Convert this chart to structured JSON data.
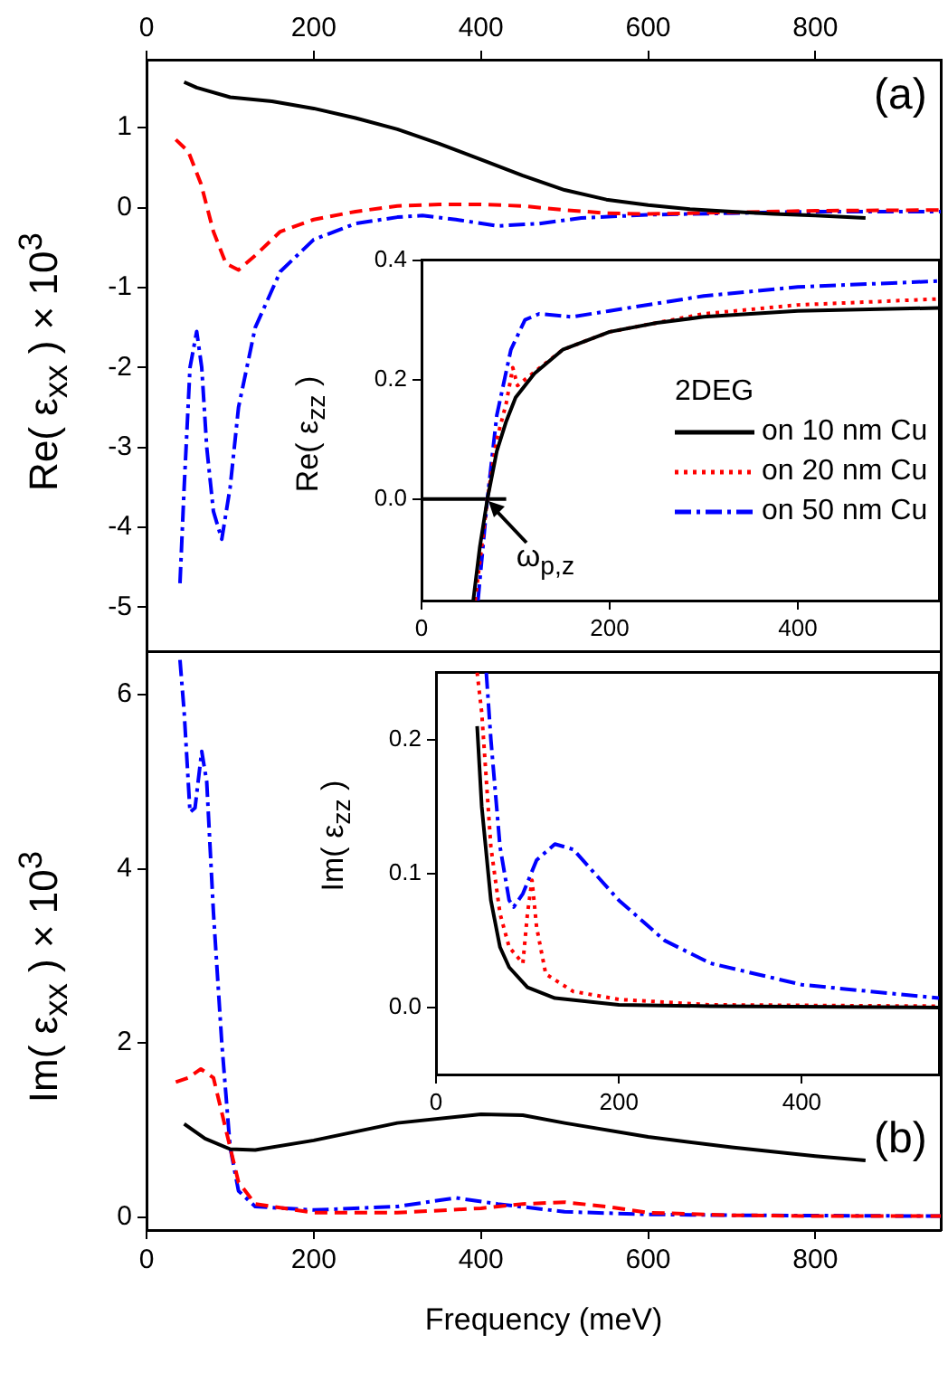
{
  "chart_data": [
    {
      "type": "line",
      "ylabel": "Re( ε$_{xx}$ ) × 10$^{3}$",
      "xlim": [
        0,
        950
      ],
      "xticks": [
        0,
        200,
        400,
        600,
        800
      ],
      "ylim": [
        -5.55,
        1.85
      ],
      "yticks": [
        -5,
        -4,
        -3,
        -2,
        -1,
        0,
        1
      ],
      "grid": false,
      "legend": false,
      "annotations": [
        "(a)"
      ],
      "series": [
        {
          "color": "#000000",
          "line_style": "solid",
          "x": [
            45,
            60,
            100,
            150,
            200,
            250,
            300,
            350,
            400,
            450,
            500,
            550,
            600,
            650,
            700,
            750,
            800,
            860
          ],
          "values": [
            1.57,
            1.5,
            1.38,
            1.33,
            1.24,
            1.12,
            0.98,
            0.8,
            0.6,
            0.4,
            0.22,
            0.1,
            0.03,
            -0.02,
            -0.05,
            -0.08,
            -0.1,
            -0.13
          ]
        },
        {
          "color": "#ff0000",
          "line_style": "dashed",
          "x": [
            35,
            50,
            65,
            80,
            95,
            110,
            130,
            160,
            200,
            250,
            300,
            350,
            400,
            450,
            500,
            550,
            600,
            700,
            800,
            950
          ],
          "values": [
            0.85,
            0.7,
            0.3,
            -0.3,
            -0.7,
            -0.78,
            -0.6,
            -0.3,
            -0.15,
            -0.05,
            0.02,
            0.04,
            0.04,
            0.02,
            -0.03,
            -0.07,
            -0.08,
            -0.06,
            -0.04,
            -0.03
          ]
        },
        {
          "color": "#0000ff",
          "line_style": "dashdot",
          "x": [
            40,
            45,
            52,
            60,
            66,
            72,
            80,
            90,
            100,
            110,
            130,
            160,
            200,
            250,
            300,
            330,
            370,
            420,
            470,
            520,
            600,
            700,
            800,
            950
          ],
          "values": [
            -4.7,
            -3.5,
            -2.0,
            -1.55,
            -2.0,
            -3.0,
            -3.8,
            -4.15,
            -3.5,
            -2.5,
            -1.5,
            -0.8,
            -0.4,
            -0.2,
            -0.12,
            -0.1,
            -0.15,
            -0.23,
            -0.2,
            -0.13,
            -0.09,
            -0.07,
            -0.05,
            -0.05
          ]
        }
      ]
    },
    {
      "type": "line",
      "ylabel": "Re( ε$_{zz}$ )",
      "xlim": [
        0,
        550
      ],
      "xticks": [
        0,
        200,
        400
      ],
      "ylim": [
        -0.17,
        0.4
      ],
      "yticks": [
        {
          "value": 0,
          "label": "0.0"
        },
        {
          "value": 0.2,
          "label": "0.2"
        },
        {
          "value": 0.4,
          "label": "0.4"
        }
      ],
      "grid": false,
      "legend": "right",
      "legend_title": "2DEG",
      "annotations": [
        {
          "text": "ω$_{p,z}$",
          "x": 70,
          "y": 0
        }
      ],
      "series": [
        {
          "name": "on 10 nm Cu",
          "color": "#000000",
          "line_style": "solid",
          "x": [
            55,
            62,
            70,
            80,
            90,
            100,
            120,
            150,
            200,
            250,
            300,
            400,
            550
          ],
          "values": [
            -0.17,
            -0.08,
            0,
            0.08,
            0.13,
            0.17,
            0.21,
            0.25,
            0.28,
            0.295,
            0.305,
            0.315,
            0.32
          ]
        },
        {
          "name": "on 20 nm Cu",
          "color": "#ff0000",
          "line_style": "dotted",
          "x": [
            57,
            70,
            80,
            90,
            97,
            102,
            110,
            150,
            200,
            300,
            400,
            550
          ],
          "values": [
            -0.17,
            0,
            0.1,
            0.16,
            0.22,
            0.19,
            0.2,
            0.25,
            0.28,
            0.31,
            0.325,
            0.335
          ]
        },
        {
          "name": "on 50 nm Cu",
          "color": "#0000ff",
          "line_style": "dashdot",
          "x": [
            60,
            70,
            80,
            95,
            110,
            125,
            160,
            200,
            300,
            400,
            550
          ],
          "values": [
            -0.17,
            0,
            0.14,
            0.25,
            0.3,
            0.31,
            0.305,
            0.315,
            0.34,
            0.355,
            0.365
          ]
        },
        {
          "color": "#000000",
          "line_style": "solid",
          "x": [
            0,
            90
          ],
          "values": [
            0,
            0
          ]
        }
      ]
    },
    {
      "type": "line",
      "ylabel": "Im( ε$_{xx}$ ) × 10$^{3}$",
      "xlabel": "Frequency (meV)",
      "xlim": [
        0,
        950
      ],
      "xticks": [
        0,
        200,
        400,
        600,
        800
      ],
      "ylim": [
        -0.15,
        6.5
      ],
      "yticks": [
        0,
        2,
        4,
        6
      ],
      "grid": false,
      "legend": false,
      "annotations": [
        "(b)"
      ],
      "series": [
        {
          "color": "#000000",
          "line_style": "solid",
          "x": [
            45,
            70,
            100,
            130,
            200,
            300,
            400,
            450,
            500,
            600,
            700,
            800,
            860
          ],
          "values": [
            1.07,
            0.9,
            0.78,
            0.77,
            0.88,
            1.08,
            1.18,
            1.17,
            1.08,
            0.92,
            0.8,
            0.7,
            0.65
          ]
        },
        {
          "color": "#ff0000",
          "line_style": "dashed",
          "x": [
            35,
            50,
            65,
            80,
            95,
            110,
            130,
            200,
            300,
            400,
            450,
            500,
            550,
            600,
            700,
            800,
            950
          ],
          "values": [
            1.55,
            1.6,
            1.7,
            1.6,
            1.0,
            0.4,
            0.15,
            0.05,
            0.05,
            0.1,
            0.15,
            0.17,
            0.12,
            0.05,
            0.02,
            0.01,
            0.01
          ]
        },
        {
          "color": "#0000ff",
          "line_style": "dashdot",
          "x": [
            40,
            45,
            52,
            58,
            66,
            72,
            80,
            90,
            100,
            110,
            130,
            200,
            300,
            370,
            420,
            500,
            600,
            700,
            950
          ],
          "values": [
            6.4,
            5.8,
            4.65,
            4.7,
            5.35,
            5.0,
            3.5,
            2.0,
            0.8,
            0.3,
            0.12,
            0.08,
            0.12,
            0.22,
            0.15,
            0.06,
            0.03,
            0.02,
            0.01
          ]
        }
      ]
    },
    {
      "type": "line",
      "ylabel": "Im( ε$_{zz}$ )",
      "xlim": [
        0,
        550
      ],
      "xticks": [
        0,
        200,
        400
      ],
      "ylim": [
        -0.05,
        0.25
      ],
      "yticks": [
        {
          "value": 0,
          "label": "0.0"
        },
        {
          "value": 0.1,
          "label": "0.1"
        },
        {
          "value": 0.2,
          "label": "0.2"
        }
      ],
      "grid": false,
      "legend": false,
      "series": [
        {
          "color": "#000000",
          "line_style": "solid",
          "x": [
            45,
            50,
            60,
            70,
            80,
            100,
            130,
            200,
            300,
            550
          ],
          "values": [
            0.21,
            0.15,
            0.08,
            0.045,
            0.03,
            0.015,
            0.007,
            0.002,
            0.001,
            0
          ]
        },
        {
          "color": "#ff0000",
          "line_style": "dotted",
          "x": [
            45,
            50,
            60,
            70,
            80,
            95,
            100,
            105,
            110,
            120,
            150,
            200,
            300,
            550
          ],
          "values": [
            0.25,
            0.22,
            0.12,
            0.07,
            0.045,
            0.033,
            0.07,
            0.095,
            0.06,
            0.025,
            0.012,
            0.006,
            0.002,
            0.001
          ]
        },
        {
          "color": "#0000ff",
          "line_style": "dashdot",
          "x": [
            55,
            60,
            70,
            80,
            85,
            95,
            110,
            130,
            150,
            200,
            250,
            300,
            400,
            550
          ],
          "values": [
            0.25,
            0.2,
            0.12,
            0.08,
            0.075,
            0.085,
            0.11,
            0.122,
            0.118,
            0.08,
            0.05,
            0.033,
            0.017,
            0.007
          ]
        }
      ]
    }
  ]
}
